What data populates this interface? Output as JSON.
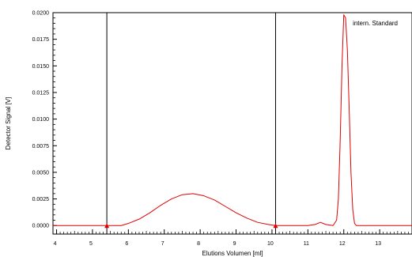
{
  "chart_data": {
    "type": "line",
    "xlabel": "Elutions Volumen [ml]",
    "ylabel": "Detector Signal [V]",
    "xlim": [
      3.9,
      13.9
    ],
    "ylim": [
      -0.0008,
      0.02
    ],
    "x_ticks": [
      4,
      5,
      6,
      7,
      8,
      9,
      10,
      11,
      12,
      13
    ],
    "y_ticks": [
      "0.0000",
      "0.0025",
      "0.0050",
      "0.0075",
      "0.0100",
      "0.0125",
      "0.0150",
      "0.0175",
      "0.0200"
    ],
    "grid": false,
    "legend": "none",
    "annotations": [
      {
        "text": "intern. Standard",
        "x": 12.25,
        "y": 0.0188
      }
    ],
    "vertical_lines": [
      5.4,
      10.1
    ],
    "baseline_markers": [
      5.4,
      10.1
    ],
    "series": [
      {
        "color": "#e00000",
        "x": [
          3.9,
          5.4,
          5.8,
          6.0,
          6.3,
          6.6,
          6.9,
          7.2,
          7.5,
          7.8,
          8.1,
          8.4,
          8.7,
          9.0,
          9.3,
          9.6,
          9.9,
          10.1,
          10.5,
          11.0,
          11.2,
          11.35,
          11.5,
          11.7,
          11.8,
          11.85,
          11.9,
          11.95,
          12.0,
          12.05,
          12.1,
          12.15,
          12.2,
          12.25,
          12.3,
          12.35,
          13.9
        ],
        "y": [
          0.0,
          0.0,
          0.0,
          0.0002,
          0.0006,
          0.0012,
          0.0019,
          0.0025,
          0.0029,
          0.003,
          0.0028,
          0.0024,
          0.0018,
          0.0012,
          0.0007,
          0.0003,
          0.0001,
          0.0,
          0.0,
          0.0,
          0.0001,
          0.0003,
          0.0001,
          0.0,
          0.0005,
          0.0025,
          0.008,
          0.015,
          0.0198,
          0.0195,
          0.0165,
          0.011,
          0.005,
          0.0015,
          0.0002,
          0.0,
          0.0
        ]
      }
    ]
  }
}
